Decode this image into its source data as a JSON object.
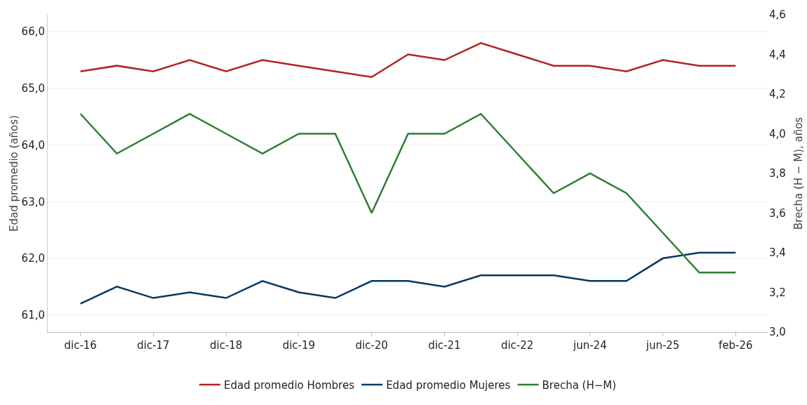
{
  "chart_data": {
    "type": "line",
    "ylabel": "Edad promedio (años)",
    "y2label": "Brecha (H − M), años",
    "categories": [
      "dic-16",
      null,
      "dic-17",
      null,
      "dic-18",
      null,
      "dic-19",
      null,
      "dic-20",
      null,
      "dic-21",
      null,
      "dic-22",
      null,
      "jun-24",
      null,
      "jun-25",
      null,
      "feb-26"
    ],
    "series": [
      {
        "name": "Edad promedio Hombres",
        "color": "#b22222",
        "values": [
          65.3,
          65.4,
          65.3,
          65.5,
          65.3,
          65.5,
          65.4,
          65.3,
          65.2,
          65.6,
          65.5,
          65.8,
          65.6,
          65.4,
          65.4,
          65.3,
          65.5,
          65.4,
          65.4
        ]
      },
      {
        "name": "Edad promedio Mujeres",
        "color": "#003865",
        "values": [
          61.2,
          61.5,
          61.3,
          61.4,
          61.3,
          61.6,
          61.4,
          61.3,
          61.6,
          61.6,
          61.5,
          61.7,
          61.7,
          61.7,
          61.6,
          61.6,
          62.0,
          62.1,
          62.1
        ]
      },
      {
        "name": "Brecha (H−M)",
        "color": "#2e7d32",
        "axis": "y2",
        "values": [
          4.1,
          3.9,
          4.0,
          4.1,
          4.0,
          3.9,
          4.0,
          4.0,
          3.6,
          4.0,
          4.0,
          4.1,
          3.9,
          3.7,
          3.8,
          3.7,
          3.5,
          3.3,
          3.3
        ]
      }
    ],
    "ylim": [
      60.7,
      66.3
    ],
    "yticks": [
      {
        "value": 61,
        "label": "61,0"
      },
      {
        "value": 62,
        "label": "62,0"
      },
      {
        "value": 63,
        "label": "63,0"
      },
      {
        "value": 64,
        "label": "64,0"
      },
      {
        "value": 65,
        "label": "65,0"
      },
      {
        "value": 66,
        "label": "66,0"
      }
    ],
    "y2lim": [
      3.0,
      4.6
    ],
    "y2ticks": [
      {
        "value": 3.0,
        "label": "3,0"
      },
      {
        "value": 3.2,
        "label": "3,2"
      },
      {
        "value": 3.4,
        "label": "3,4"
      },
      {
        "value": 3.6,
        "label": "3,6"
      },
      {
        "value": 3.8,
        "label": "3,8"
      },
      {
        "value": 4.0,
        "label": "4,0"
      },
      {
        "value": 4.2,
        "label": "4,2"
      },
      {
        "value": 4.4,
        "label": "4,4"
      },
      {
        "value": 4.6,
        "label": "4,6"
      }
    ],
    "grid": "y",
    "legend": "bottom",
    "marker": "none",
    "line_style": "solid"
  }
}
